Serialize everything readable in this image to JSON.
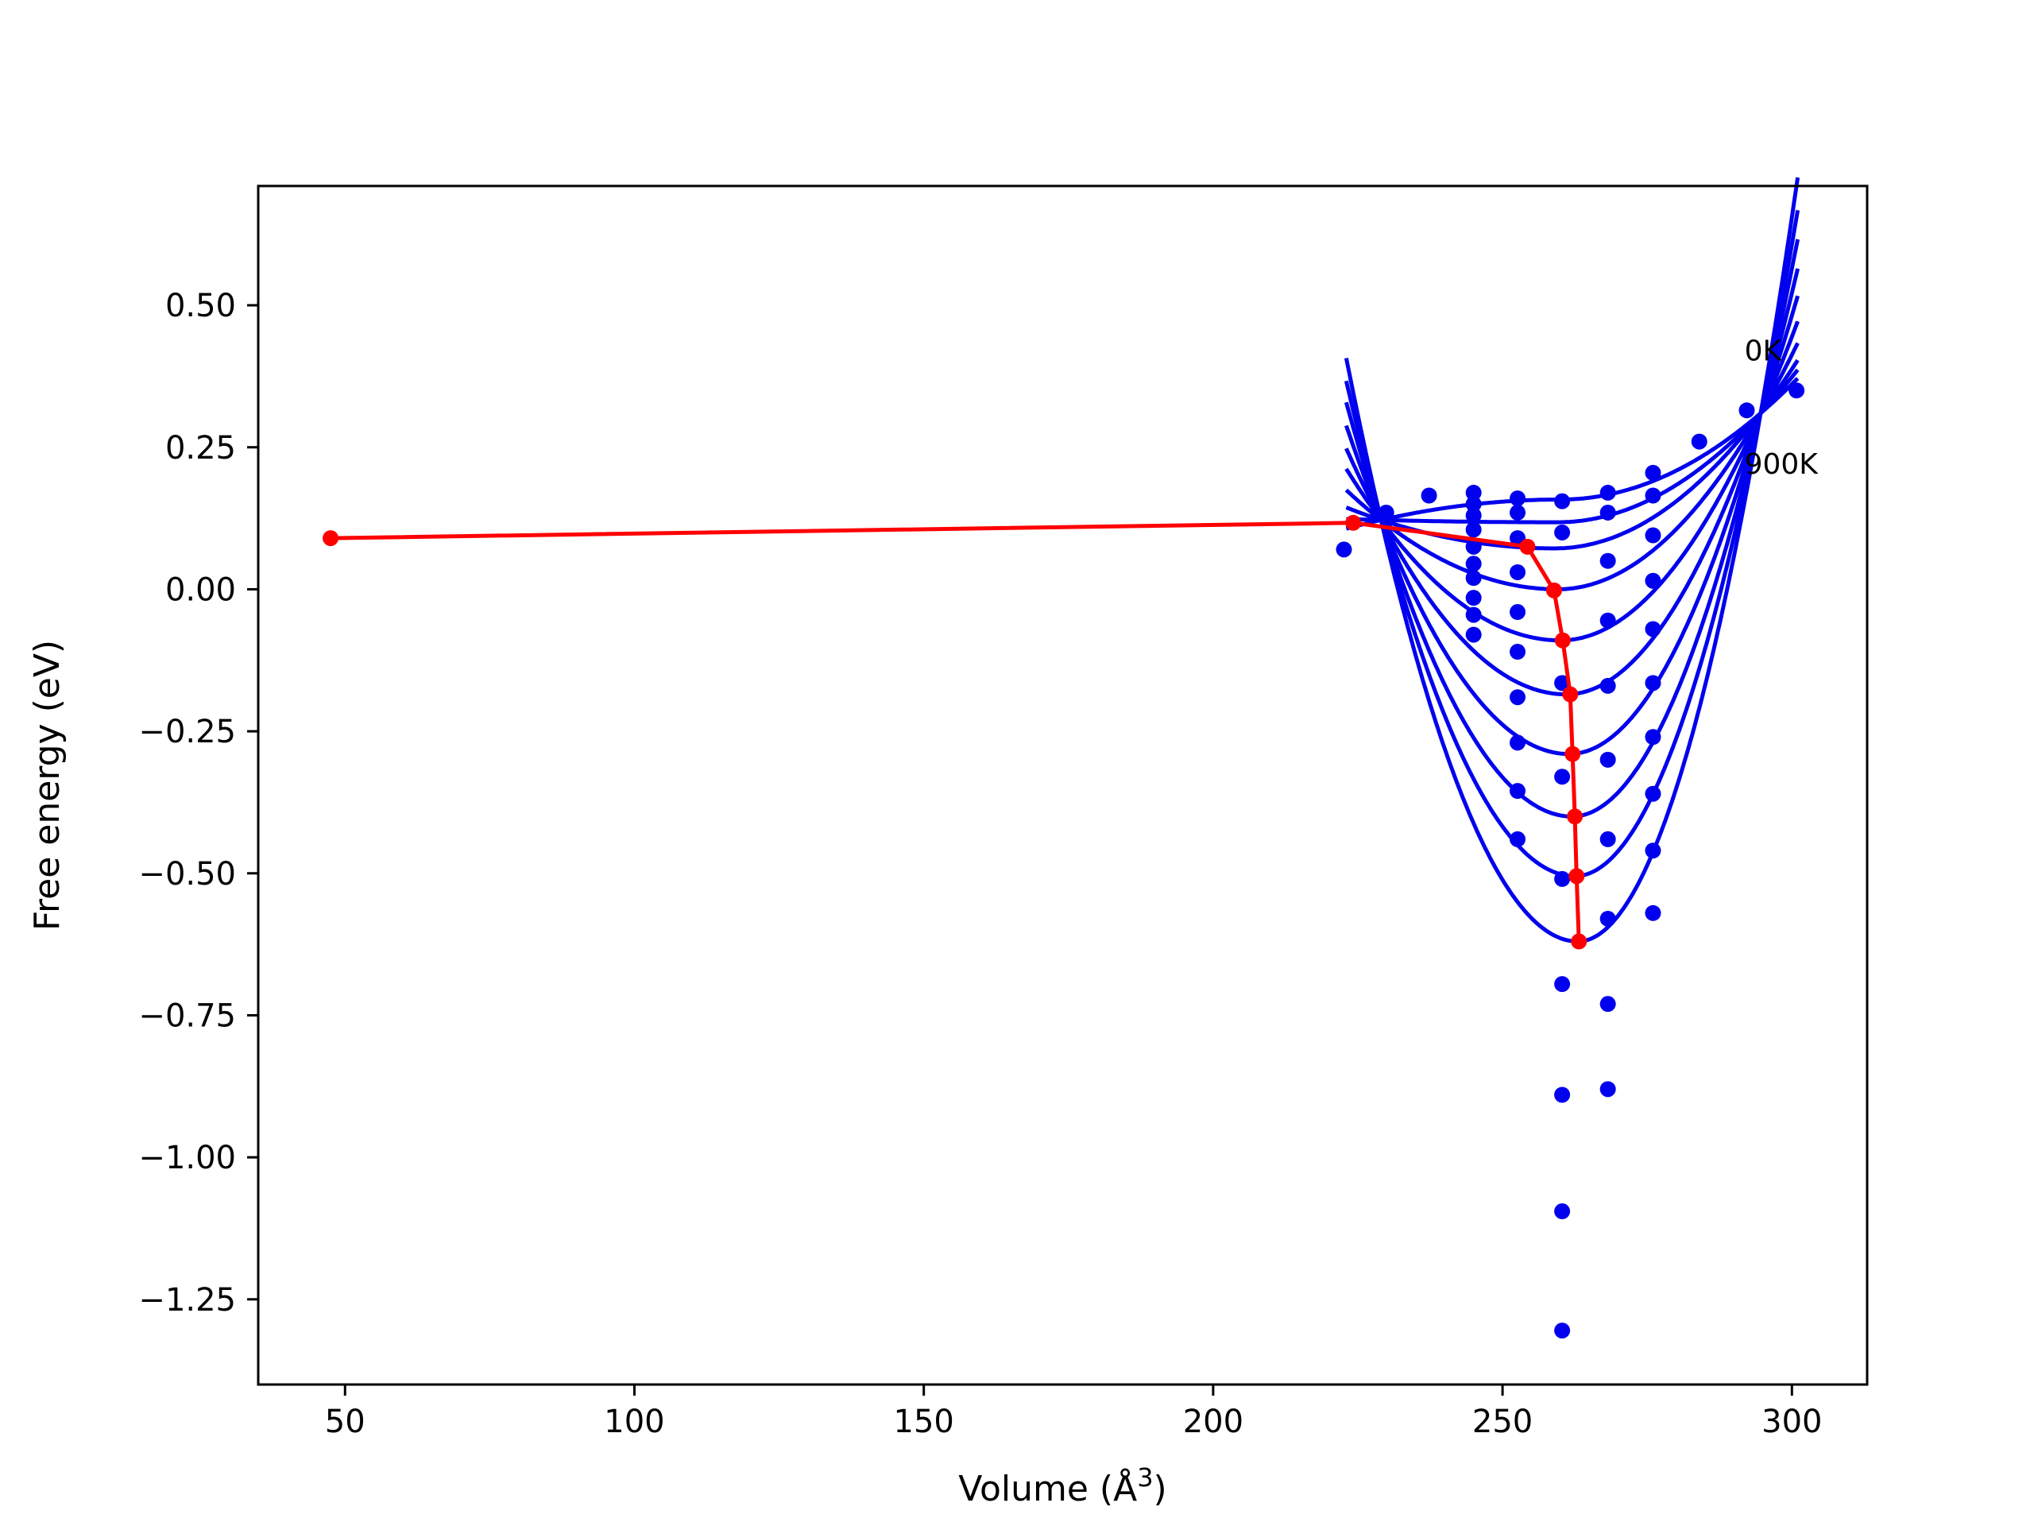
{
  "chart_data": {
    "type": "line",
    "xlabel": "Volume (Å",
    "xlabel_sup": "3",
    "xlabel_close": ")",
    "ylabel": "Free energy (eV)",
    "xlim": [
      35,
      313
    ],
    "ylim": [
      -1.4,
      0.71
    ],
    "xticks": [
      50,
      100,
      150,
      200,
      250,
      300
    ],
    "xtick_labels": [
      "50",
      "100",
      "150",
      "200",
      "250",
      "300"
    ],
    "yticks": [
      0.5,
      0.25,
      0.0,
      -0.25,
      -0.5,
      -0.75,
      -1.0,
      -1.25
    ],
    "ytick_labels": [
      "0.50",
      "0.25",
      "0.00",
      "−0.25",
      "−0.50",
      "−0.75",
      "−1.00",
      "−1.25"
    ],
    "grid": false,
    "annotations": [
      {
        "text": "0K",
        "x": 291.8,
        "y": 0.42
      },
      {
        "text": "900K",
        "x": 291.8,
        "y": 0.22
      }
    ],
    "colors": {
      "curves": "#0000ee",
      "points": "#0000ee",
      "minimum_path": "#ff0000",
      "axes": "#000000"
    },
    "curve_x_range": [
      223,
      301
    ],
    "curves": [
      {
        "vmin": 260.0,
        "fmin": 0.158
      },
      {
        "vmin": 259.5,
        "fmin": 0.118
      },
      {
        "vmin": 259.0,
        "fmin": 0.072
      },
      {
        "vmin": 259.5,
        "fmin": 0.0
      },
      {
        "vmin": 260.0,
        "fmin": -0.09
      },
      {
        "vmin": 261.0,
        "fmin": -0.185
      },
      {
        "vmin": 261.5,
        "fmin": -0.29
      },
      {
        "vmin": 262.0,
        "fmin": -0.4
      },
      {
        "vmin": 262.5,
        "fmin": -0.505
      },
      {
        "vmin": 263.0,
        "fmin": -0.62
      }
    ],
    "scatter_points": [
      [
        222.6,
        0.07
      ],
      [
        229.9,
        0.135
      ],
      [
        237.3,
        0.165
      ],
      [
        245.0,
        0.17
      ],
      [
        245.0,
        0.15
      ],
      [
        245.0,
        0.13
      ],
      [
        245.0,
        0.105
      ],
      [
        245.0,
        0.075
      ],
      [
        245.0,
        0.045
      ],
      [
        245.0,
        0.02
      ],
      [
        245.0,
        -0.015
      ],
      [
        245.0,
        -0.045
      ],
      [
        245.0,
        -0.08
      ],
      [
        252.6,
        0.16
      ],
      [
        252.6,
        0.135
      ],
      [
        252.6,
        0.09
      ],
      [
        252.6,
        0.03
      ],
      [
        252.6,
        -0.04
      ],
      [
        252.6,
        -0.11
      ],
      [
        252.6,
        -0.19
      ],
      [
        252.6,
        -0.27
      ],
      [
        252.6,
        -0.355
      ],
      [
        252.6,
        -0.44
      ],
      [
        260.3,
        0.155
      ],
      [
        260.3,
        0.1
      ],
      [
        260.3,
        -0.165
      ],
      [
        260.3,
        -0.33
      ],
      [
        260.3,
        -0.51
      ],
      [
        260.3,
        -0.695
      ],
      [
        260.3,
        -0.89
      ],
      [
        260.3,
        -1.095
      ],
      [
        260.3,
        -1.305
      ],
      [
        268.2,
        0.17
      ],
      [
        268.2,
        0.135
      ],
      [
        268.2,
        0.05
      ],
      [
        268.2,
        -0.055
      ],
      [
        268.2,
        -0.17
      ],
      [
        268.2,
        -0.3
      ],
      [
        268.2,
        -0.44
      ],
      [
        268.2,
        -0.58
      ],
      [
        268.2,
        -0.73
      ],
      [
        268.2,
        -0.88
      ],
      [
        276.0,
        0.205
      ],
      [
        276.0,
        0.165
      ],
      [
        276.0,
        0.095
      ],
      [
        276.0,
        0.015
      ],
      [
        276.0,
        -0.07
      ],
      [
        276.0,
        -0.165
      ],
      [
        276.0,
        -0.26
      ],
      [
        276.0,
        -0.36
      ],
      [
        276.0,
        -0.46
      ],
      [
        276.0,
        -0.57
      ],
      [
        284.0,
        0.26
      ],
      [
        292.2,
        0.315
      ],
      [
        300.8,
        0.35
      ]
    ],
    "min_path": {
      "x": [
        47.5,
        224.2,
        254.3,
        258.9,
        260.4,
        261.7,
        262.1,
        262.5,
        262.8,
        263.2
      ],
      "y": [
        0.09,
        0.117,
        0.075,
        -0.002,
        -0.09,
        -0.185,
        -0.29,
        -0.4,
        -0.505,
        -0.62
      ]
    }
  }
}
